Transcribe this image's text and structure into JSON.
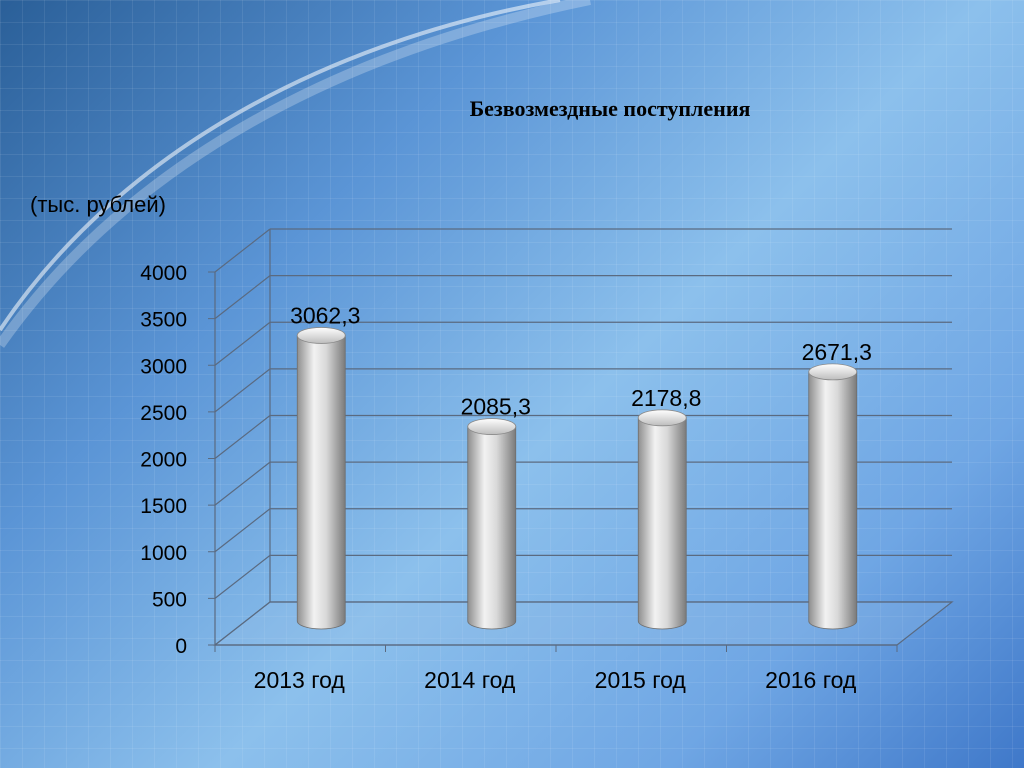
{
  "slide": {
    "title": "Безвозмездные поступления",
    "unit_label": "(тыс. рублей)"
  },
  "colors": {
    "bar_fill": "#c8c8c8",
    "gridline": "#5a6a80",
    "text": "#000000"
  },
  "chart_data": {
    "type": "bar",
    "title": "Безвозмездные поступления",
    "ylabel": "(тыс. рублей)",
    "xlabel": "",
    "categories": [
      "2013 год",
      "2014 год",
      "2015 год",
      "2016 год"
    ],
    "values": [
      3062.3,
      2085.3,
      2178.8,
      2671.3
    ],
    "value_labels": [
      "3062,3",
      "2085,3",
      "2178,8",
      "2671,3"
    ],
    "ylim": [
      0,
      4000
    ],
    "yticks": [
      0,
      500,
      1000,
      1500,
      2000,
      2500,
      3000,
      3500,
      4000
    ],
    "grid": true,
    "legend": "none",
    "style": "3d-cylinder"
  }
}
